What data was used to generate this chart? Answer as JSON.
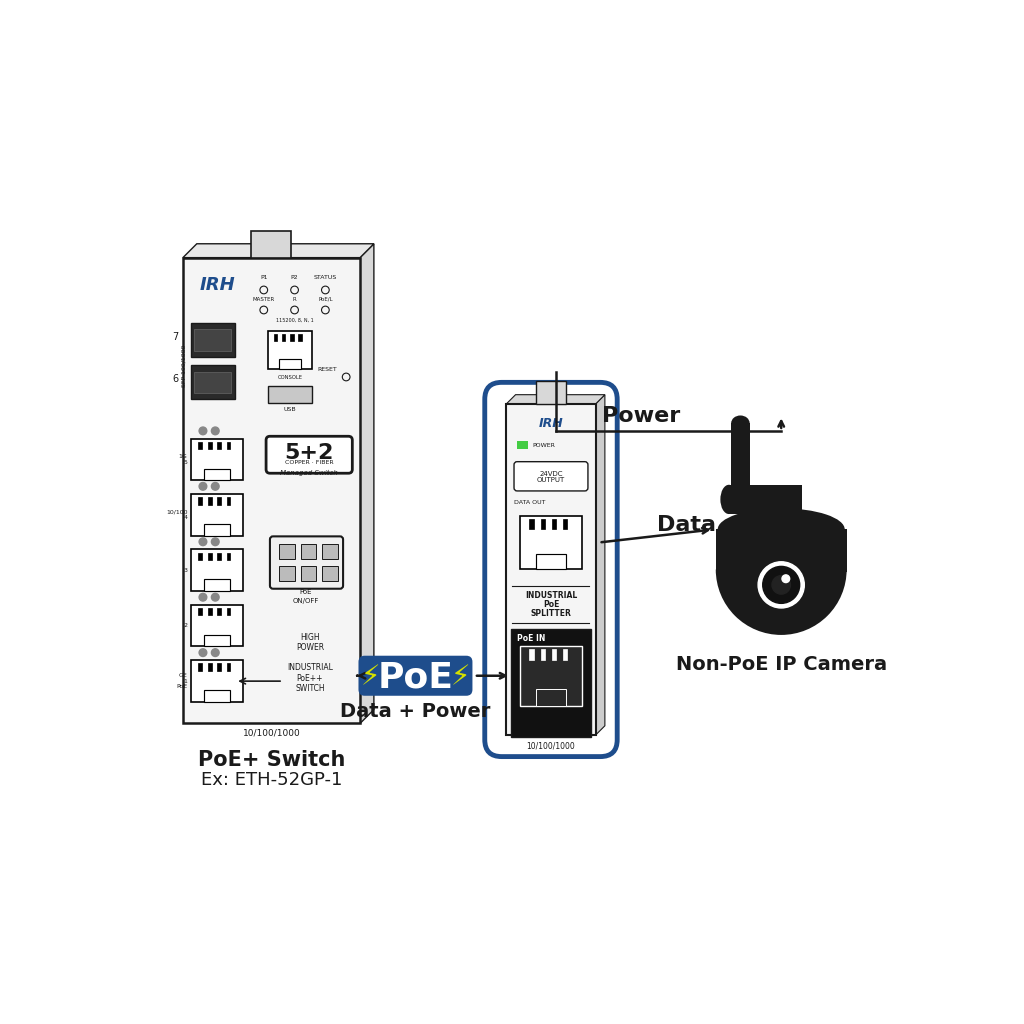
{
  "background_color": "#ffffff",
  "switch_label1": "PoE+ Switch",
  "switch_label2": "Ex: ETH-52GP-1",
  "poe_sub_text": "Data + Power",
  "power_label": "Power",
  "data_label": "Data",
  "camera_label": "Non-PoE IP Camera",
  "black": "#1a1a1a",
  "blue": "#1e4d8c",
  "poe_box_bg": "#1e4d8c",
  "poe_lightning_color": "#d4e000",
  "green_led": "#44cc44",
  "gray_light": "#e8e8e8",
  "gray_mid": "#cccccc",
  "gray_dark": "#999999"
}
